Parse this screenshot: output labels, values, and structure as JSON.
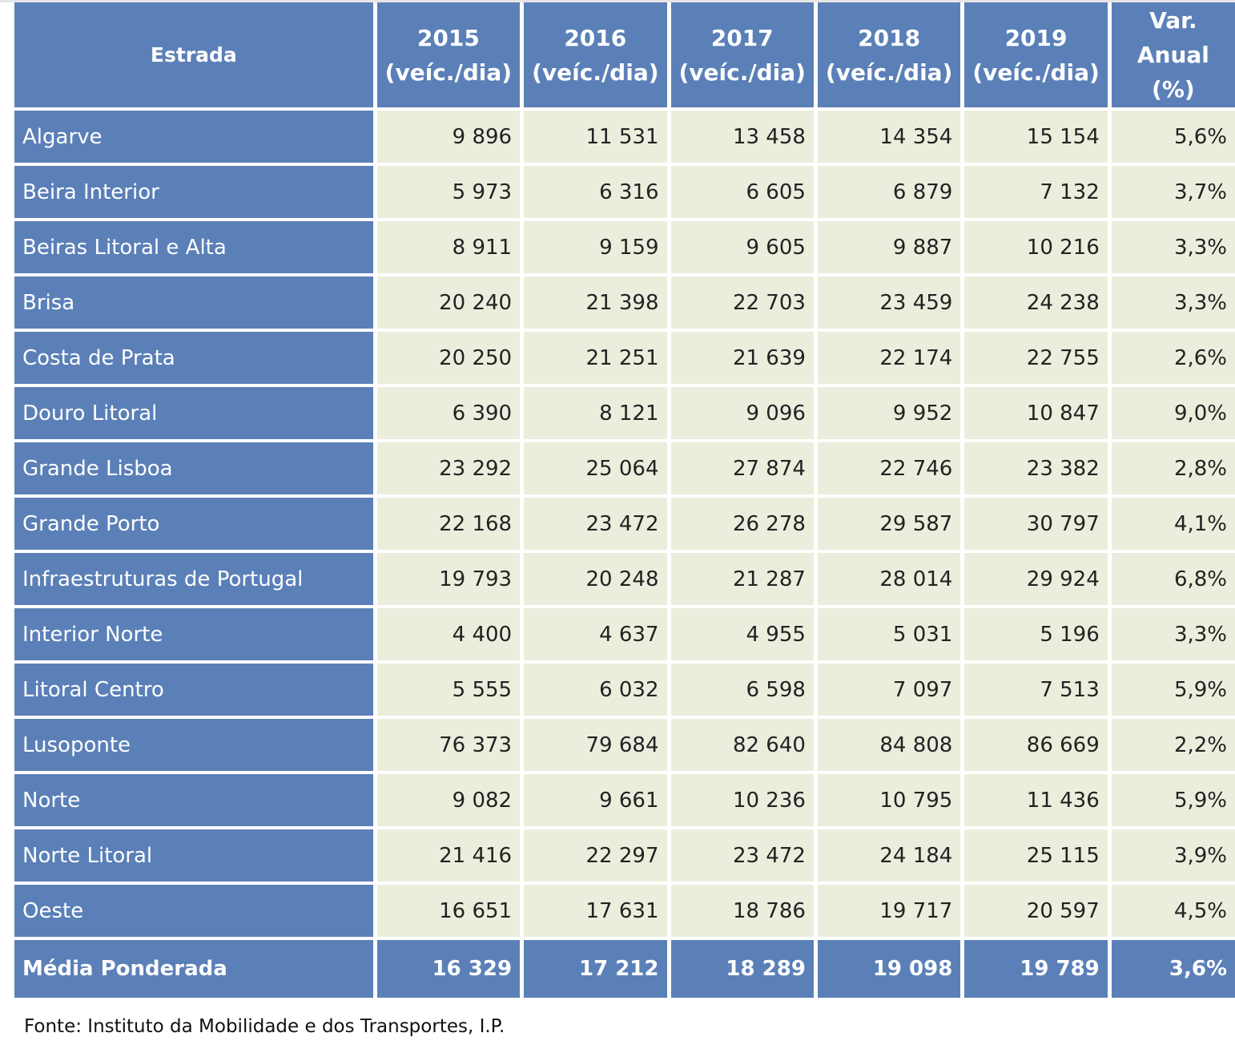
{
  "table": {
    "headers": [
      "Estrada",
      "2015 (veíc./dia)",
      "2016 (veíc./dia)",
      "2017 (veíc./dia)",
      "2018 (veíc./dia)",
      "2019 (veíc./dia)",
      "Var. Anual (%)"
    ],
    "rows": [
      [
        "Algarve",
        "9 896",
        "11 531",
        "13 458",
        "14 354",
        "15 154",
        "5,6%"
      ],
      [
        "Beira Interior",
        "5 973",
        "6 316",
        "6 605",
        "6 879",
        "7 132",
        "3,7%"
      ],
      [
        "Beiras Litoral e Alta",
        "8 911",
        "9 159",
        "9 605",
        "9 887",
        "10 216",
        "3,3%"
      ],
      [
        "Brisa",
        "20 240",
        "21 398",
        "22 703",
        "23 459",
        "24 238",
        "3,3%"
      ],
      [
        "Costa de Prata",
        "20 250",
        "21 251",
        "21 639",
        "22 174",
        "22 755",
        "2,6%"
      ],
      [
        "Douro Litoral",
        "6 390",
        "8 121",
        "9 096",
        "9 952",
        "10 847",
        "9,0%"
      ],
      [
        "Grande Lisboa",
        "23 292",
        "25 064",
        "27 874",
        "22 746",
        "23 382",
        "2,8%"
      ],
      [
        "Grande Porto",
        "22 168",
        "23 472",
        "26 278",
        "29 587",
        "30 797",
        "4,1%"
      ],
      [
        "Infraestruturas de Portugal",
        "19 793",
        "20 248",
        "21 287",
        "28 014",
        "29 924",
        "6,8%"
      ],
      [
        "Interior Norte",
        "4 400",
        "4 637",
        "4 955",
        "5 031",
        "5 196",
        "3,3%"
      ],
      [
        "Litoral Centro",
        "5 555",
        "6 032",
        "6 598",
        "7 097",
        "7 513",
        "5,9%"
      ],
      [
        "Lusoponte",
        "76 373",
        "79 684",
        "82 640",
        "84 808",
        "86 669",
        "2,2%"
      ],
      [
        "Norte",
        "9 082",
        "9 661",
        "10 236",
        "10 795",
        "11 436",
        "5,9%"
      ],
      [
        "Norte Litoral",
        "21 416",
        "22 297",
        "23 472",
        "24 184",
        "25 115",
        "3,9%"
      ],
      [
        "Oeste",
        "16 651",
        "17 631",
        "18 786",
        "19 717",
        "20 597",
        "4,5%"
      ]
    ],
    "total_row": [
      "Média Ponderada",
      "16 329",
      "17 212",
      "18 289",
      "19 098",
      "19 789",
      "3,6%"
    ]
  },
  "source": "Fonte: Instituto da Mobilidade e dos Transportes, I.P.",
  "colors": {
    "header_bg": "#5b80b8",
    "cell_bg": "#eceedd",
    "header_text": "#ffffff"
  }
}
